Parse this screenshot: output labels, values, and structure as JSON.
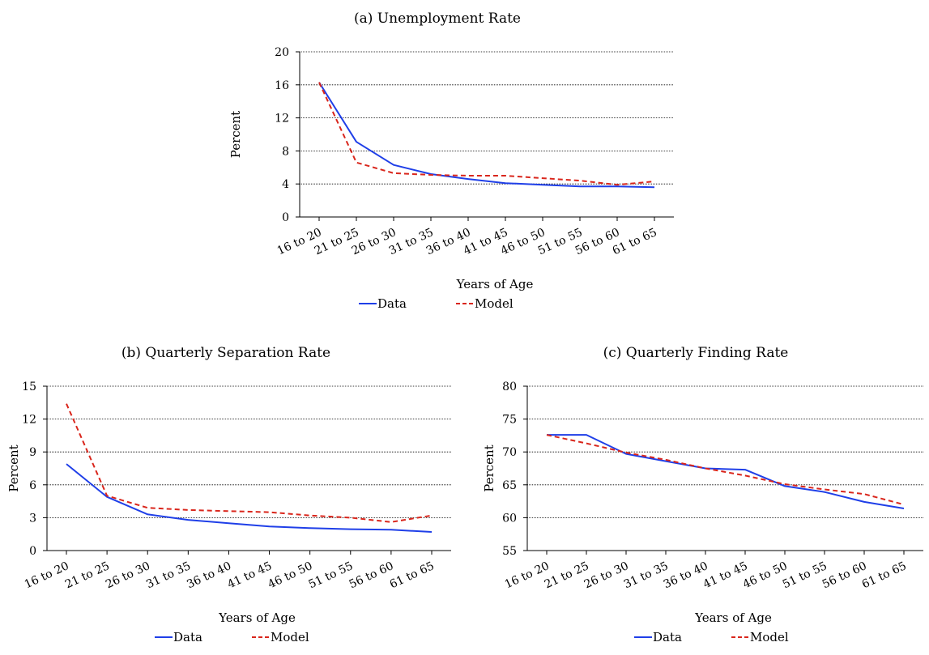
{
  "colors": {
    "data": "#1f3fe8",
    "model": "#d9261c"
  },
  "chart_data": [
    {
      "type": "line",
      "title": "(a) Unemployment Rate",
      "xlabel": "Years of Age",
      "ylabel": "Percent",
      "ylim": [
        0,
        20
      ],
      "yticks": [
        0,
        4,
        8,
        12,
        16,
        20
      ],
      "grid": true,
      "legend": "bottom-center",
      "categories": [
        "16 to 20",
        "21 to 25",
        "26 to 30",
        "31 to 35",
        "36 to 40",
        "41 to 45",
        "46 to 50",
        "51 to 55",
        "56 to 60",
        "61 to 65"
      ],
      "series": [
        {
          "name": "Data",
          "style": "solid",
          "values": [
            16.3,
            9.1,
            6.3,
            5.2,
            4.6,
            4.1,
            3.9,
            3.7,
            3.7,
            3.6
          ]
        },
        {
          "name": "Model",
          "style": "dashed",
          "values": [
            16.3,
            6.6,
            5.3,
            5.1,
            5.0,
            5.0,
            4.7,
            4.4,
            3.9,
            4.3
          ]
        }
      ]
    },
    {
      "type": "line",
      "title": "(b) Quarterly Separation Rate",
      "xlabel": "Years of Age",
      "ylabel": "Percent",
      "ylim": [
        0,
        15
      ],
      "yticks": [
        0,
        3,
        6,
        9,
        12,
        15
      ],
      "grid": true,
      "legend": "bottom-center",
      "categories": [
        "16 to 20",
        "21 to 25",
        "26 to 30",
        "31 to 35",
        "36 to 40",
        "41 to 45",
        "46 to 50",
        "51 to 55",
        "56 to 60",
        "61 to 65"
      ],
      "series": [
        {
          "name": "Data",
          "style": "solid",
          "values": [
            7.9,
            4.9,
            3.3,
            2.8,
            2.5,
            2.2,
            2.05,
            1.95,
            1.9,
            1.7
          ]
        },
        {
          "name": "Model",
          "style": "dashed",
          "values": [
            13.4,
            5.0,
            3.9,
            3.7,
            3.6,
            3.5,
            3.2,
            3.0,
            2.6,
            3.2
          ]
        }
      ]
    },
    {
      "type": "line",
      "title": "(c) Quarterly Finding Rate",
      "xlabel": "Years of Age",
      "ylabel": "Percent",
      "ylim": [
        55,
        80
      ],
      "yticks": [
        55,
        60,
        65,
        70,
        75,
        80
      ],
      "grid": true,
      "legend": "bottom-center",
      "categories": [
        "16 to 20",
        "21 to 25",
        "26 to 30",
        "31 to 35",
        "36 to 40",
        "41 to 45",
        "46 to 50",
        "51 to 55",
        "56 to 60",
        "61 to 65"
      ],
      "series": [
        {
          "name": "Data",
          "style": "solid",
          "values": [
            72.6,
            72.6,
            69.7,
            68.6,
            67.5,
            67.3,
            64.8,
            63.9,
            62.4,
            61.4
          ]
        },
        {
          "name": "Model",
          "style": "dashed",
          "values": [
            72.6,
            71.3,
            69.9,
            68.8,
            67.5,
            66.4,
            65.1,
            64.3,
            63.6,
            62.0
          ]
        }
      ]
    }
  ]
}
